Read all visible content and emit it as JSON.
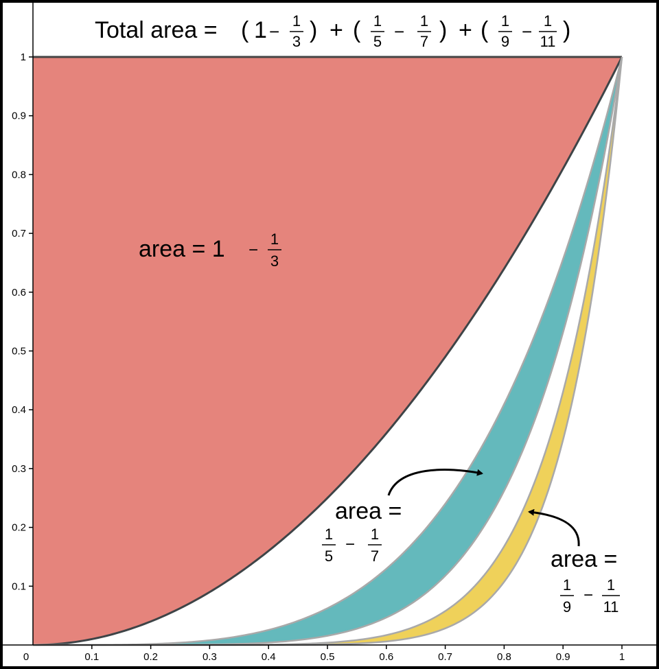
{
  "chart_data": {
    "type": "area",
    "title_prefix": "Total area = ",
    "xlim": [
      0,
      1
    ],
    "ylim": [
      0,
      1
    ],
    "x_ticks": [
      "0.1",
      "0.2",
      "0.3",
      "0.4",
      "0.5",
      "0.6",
      "0.7",
      "0.8",
      "0.9",
      "1"
    ],
    "y_ticks": [
      "0.1",
      "0.2",
      "0.3",
      "0.4",
      "0.5",
      "0.6",
      "0.7",
      "0.8",
      "0.9",
      "1"
    ],
    "origin_label": "0",
    "curves": [
      {
        "equation": "y = x^2",
        "exponent": 2
      },
      {
        "equation": "y = x^4",
        "exponent": 4
      },
      {
        "equation": "y = x^6",
        "exponent": 6
      },
      {
        "equation": "y = x^8",
        "exponent": 8
      },
      {
        "equation": "y = x^10",
        "exponent": 10
      }
    ],
    "regions": [
      {
        "between": [
          "y = 1",
          "y = x^2"
        ],
        "color": "#e5847c",
        "area": 0.6667
      },
      {
        "between": [
          "y = x^4",
          "y = x^6"
        ],
        "color": "#64b9bc",
        "area": 0.0571
      },
      {
        "between": [
          "y = x^8",
          "y = x^10"
        ],
        "color": "#efd15a",
        "area": 0.0202
      }
    ],
    "annotations": {
      "red": {
        "prefix": "area = 1",
        "minus": "−",
        "num": "1",
        "den": "3"
      },
      "teal": {
        "prefix": "area =",
        "num1": "1",
        "den1": "5",
        "minus": "−",
        "num2": "1",
        "den2": "7"
      },
      "yellow": {
        "prefix": "area =",
        "num1": "1",
        "den1": "9",
        "minus": "−",
        "num2": "1",
        "den2": "11"
      }
    },
    "title_terms": [
      {
        "open": "(",
        "whole": "1",
        "minus": "−",
        "num": "1",
        "den": "3",
        "close": ")"
      },
      {
        "plus": "+",
        "open": "(",
        "num1": "1",
        "den1": "5",
        "minus": "−",
        "num2": "1",
        "den2": "7",
        "close": ")"
      },
      {
        "plus": "+",
        "open": "(",
        "num1": "1",
        "den1": "9",
        "minus": "−",
        "num2": "1",
        "den2": "11",
        "close": ")"
      }
    ]
  }
}
